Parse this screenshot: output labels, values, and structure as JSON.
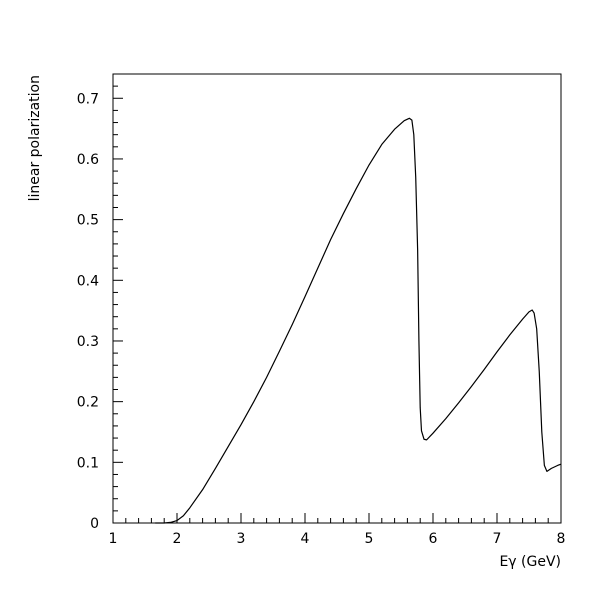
{
  "chart_data": {
    "type": "line",
    "title": "",
    "xlabel": "Eγ (GeV)",
    "ylabel": "linear polarization",
    "xlim": [
      1,
      8
    ],
    "ylim": [
      0,
      0.74
    ],
    "grid": false,
    "x_ticks": [
      1,
      2,
      3,
      4,
      5,
      6,
      7,
      8
    ],
    "y_ticks": [
      0,
      0.1,
      0.2,
      0.3,
      0.4,
      0.5,
      0.6,
      0.7
    ],
    "x_tick_labels": [
      "1",
      "2",
      "3",
      "4",
      "5",
      "6",
      "7",
      "8"
    ],
    "y_tick_labels": [
      "0",
      "0.1",
      "0.2",
      "0.3",
      "0.4",
      "0.5",
      "0.6",
      "0.7"
    ],
    "series": [
      {
        "color": "#000000",
        "x": [
          1.66,
          1.8,
          1.9,
          2.0,
          2.1,
          2.2,
          2.4,
          2.6,
          2.8,
          3.0,
          3.2,
          3.4,
          3.6,
          3.8,
          4.0,
          4.2,
          4.4,
          4.6,
          4.8,
          5.0,
          5.2,
          5.4,
          5.55,
          5.63,
          5.67,
          5.7,
          5.73,
          5.76,
          5.78,
          5.8,
          5.82,
          5.86,
          5.9,
          6.0,
          6.2,
          6.4,
          6.6,
          6.8,
          7.0,
          7.2,
          7.4,
          7.5,
          7.55,
          7.58,
          7.62,
          7.66,
          7.7,
          7.74,
          7.78,
          7.85,
          7.95,
          8.0
        ],
        "y": [
          0.0,
          0.0,
          0.001,
          0.004,
          0.012,
          0.025,
          0.055,
          0.09,
          0.126,
          0.162,
          0.2,
          0.24,
          0.283,
          0.327,
          0.373,
          0.42,
          0.467,
          0.51,
          0.551,
          0.59,
          0.624,
          0.649,
          0.663,
          0.667,
          0.664,
          0.64,
          0.57,
          0.45,
          0.3,
          0.19,
          0.152,
          0.138,
          0.137,
          0.148,
          0.172,
          0.198,
          0.225,
          0.253,
          0.282,
          0.31,
          0.336,
          0.348,
          0.351,
          0.346,
          0.32,
          0.25,
          0.15,
          0.095,
          0.085,
          0.09,
          0.095,
          0.097
        ]
      }
    ]
  }
}
